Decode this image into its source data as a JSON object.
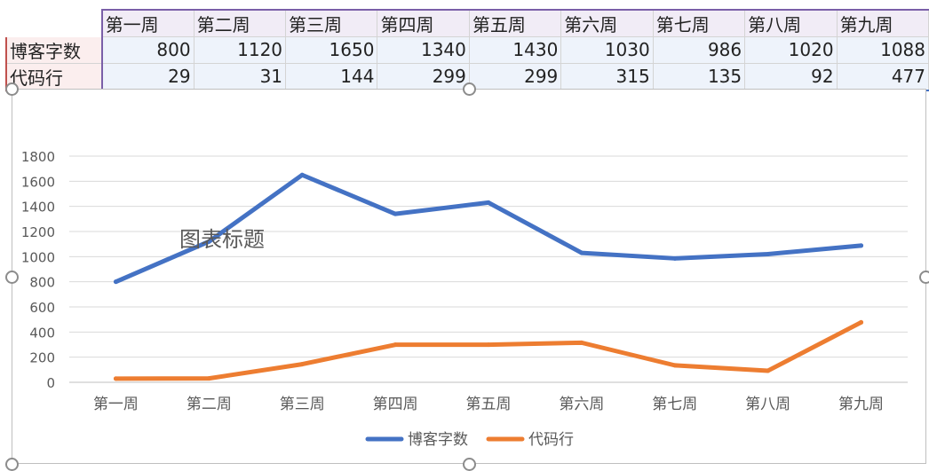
{
  "sheet": {
    "headers": [
      "第一周",
      "第二周",
      "第三周",
      "第四周",
      "第五周",
      "第六周",
      "第七周",
      "第八周",
      "第九周"
    ],
    "rows": [
      {
        "label": "博客字数",
        "values": [
          "800",
          "1120",
          "1650",
          "1340",
          "1430",
          "1030",
          "986",
          "1020",
          "1088"
        ]
      },
      {
        "label": "代码行",
        "values": [
          "29",
          "31",
          "144",
          "299",
          "299",
          "315",
          "135",
          "92",
          "477"
        ]
      }
    ]
  },
  "chart_data": {
    "type": "line",
    "title": "图表标题",
    "categories": [
      "第一周",
      "第二周",
      "第三周",
      "第四周",
      "第五周",
      "第六周",
      "第七周",
      "第八周",
      "第九周"
    ],
    "series": [
      {
        "name": "博客字数",
        "values": [
          800,
          1120,
          1650,
          1340,
          1430,
          1030,
          986,
          1020,
          1088
        ],
        "color": "#4472c4"
      },
      {
        "name": "代码行",
        "values": [
          29,
          31,
          144,
          299,
          299,
          315,
          135,
          92,
          477
        ],
        "color": "#ed7d31"
      }
    ],
    "ylim": [
      0,
      1800
    ],
    "yticks": [
      0,
      200,
      400,
      600,
      800,
      1000,
      1200,
      1400,
      1600,
      1800
    ],
    "grid": true,
    "legend": "bottom"
  }
}
